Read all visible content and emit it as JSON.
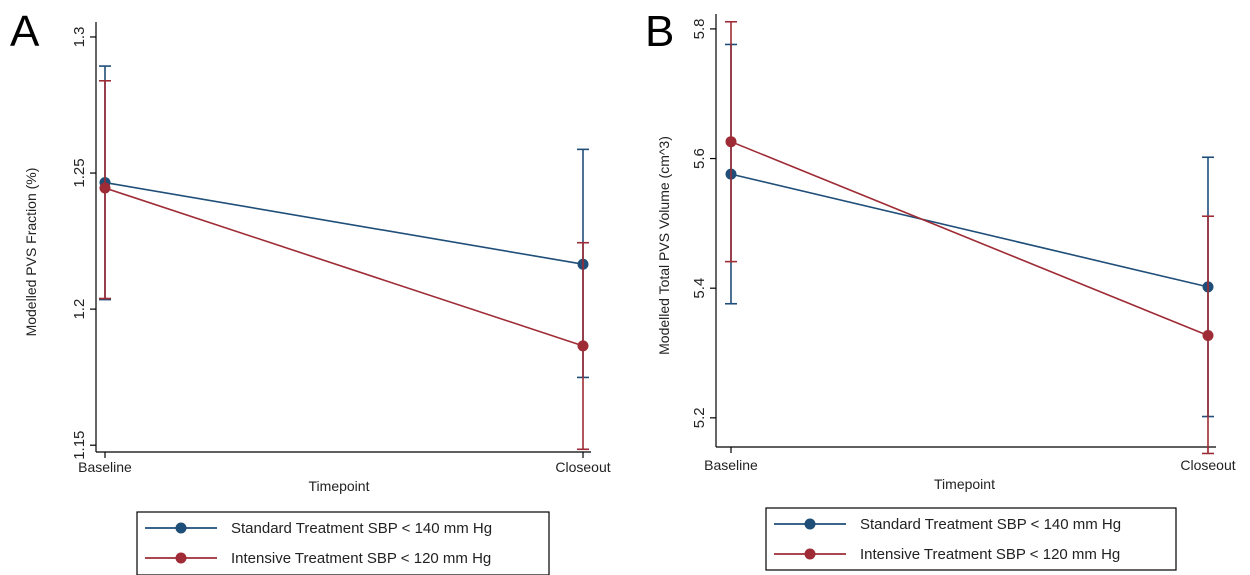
{
  "panels": [
    {
      "letter": "A",
      "legend": {
        "entries": [
          {
            "label": "Standard Treatment SBP < 140 mm Hg"
          },
          {
            "label": "Intensive Treatment SBP < 120 mm Hg"
          }
        ]
      }
    },
    {
      "letter": "B",
      "legend": {
        "entries": [
          {
            "label": "Standard Treatment SBP < 140 mm Hg"
          },
          {
            "label": "Intensive Treatment SBP < 120 mm Hg"
          }
        ]
      }
    }
  ],
  "chart_data": [
    {
      "type": "line",
      "title": "",
      "xlabel": "Timepoint",
      "ylabel": "Modelled PVS Fraction (%)",
      "categories": [
        "Baseline",
        "Closeout"
      ],
      "yticks": [
        "1.15",
        "1.2",
        "1.25",
        "1.3"
      ],
      "ylim": [
        1.1475,
        1.3055
      ],
      "grid": false,
      "legend_position": "bottom",
      "series": [
        {
          "name": "Standard Treatment SBP < 140 mm Hg",
          "color": "#1f4e79",
          "values": [
            1.2465,
            1.2165
          ],
          "lower": [
            1.2035,
            1.1749
          ],
          "upper": [
            1.2893,
            1.2587
          ]
        },
        {
          "name": "Intensive Treatment SBP < 120 mm Hg",
          "color": "#9e2b35",
          "values": [
            1.2445,
            1.1865
          ],
          "lower": [
            1.2039,
            1.1485
          ],
          "upper": [
            1.2839,
            1.2244
          ]
        }
      ]
    },
    {
      "type": "line",
      "title": "",
      "xlabel": "Timepoint",
      "ylabel": "Modelled Total PVS Volume (cm^3)",
      "categories": [
        "Baseline",
        "Closeout"
      ],
      "yticks": [
        "5.2",
        "5.4",
        "5.6",
        "5.8"
      ],
      "ylim": [
        5.155,
        5.823
      ],
      "grid": false,
      "legend_position": "bottom",
      "series": [
        {
          "name": "Standard Treatment SBP < 140 mm Hg",
          "color": "#1f4e79",
          "values": [
            5.576,
            5.402
          ],
          "lower": [
            5.376,
            5.202
          ],
          "upper": [
            5.776,
            5.602
          ]
        },
        {
          "name": "Intensive Treatment SBP < 120 mm Hg",
          "color": "#9e2b35",
          "values": [
            5.626,
            5.327
          ],
          "lower": [
            5.441,
            5.145
          ],
          "upper": [
            5.811,
            5.511
          ]
        }
      ]
    }
  ]
}
